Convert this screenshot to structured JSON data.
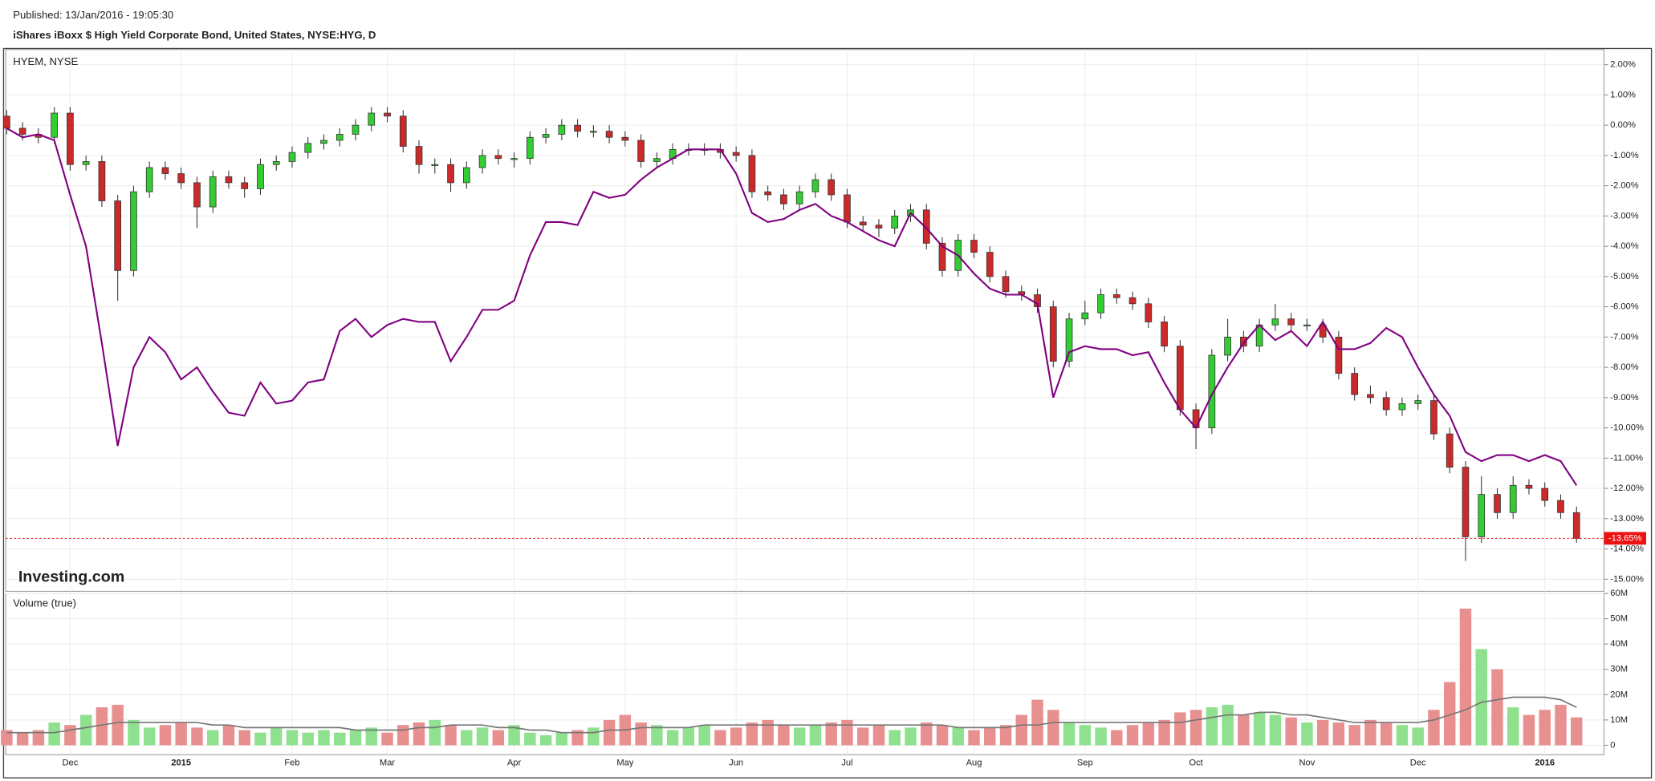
{
  "header": {
    "published": "Published: 13/Jan/2016 - 19:05:30",
    "title": "iShares iBoxx $ High Yield Corporate Bond, United States, NYSE:HYG, D"
  },
  "watermark": "Investing.com",
  "chart_data": [
    {
      "type": "candlestick",
      "title": "HYEM, NYSE",
      "up_color": "#33cc33",
      "down_color": "#cc2a2a",
      "grid": true,
      "categories": [
        null,
        null,
        null,
        null,
        "Dec",
        null,
        null,
        null,
        null,
        null,
        null,
        "2015",
        null,
        null,
        null,
        null,
        null,
        null,
        "Feb",
        null,
        null,
        null,
        null,
        null,
        "Mar",
        null,
        null,
        null,
        null,
        null,
        null,
        null,
        "Apr",
        null,
        null,
        null,
        null,
        null,
        null,
        "May",
        null,
        null,
        null,
        null,
        null,
        null,
        "Jun",
        null,
        null,
        null,
        null,
        null,
        null,
        "Jul",
        null,
        null,
        null,
        null,
        null,
        null,
        null,
        "Aug",
        null,
        null,
        null,
        null,
        null,
        null,
        "Sep",
        null,
        null,
        null,
        null,
        null,
        null,
        "Oct",
        null,
        null,
        null,
        null,
        null,
        null,
        "Nov",
        null,
        null,
        null,
        null,
        null,
        null,
        "Dec",
        null,
        null,
        null,
        null,
        null,
        null,
        null,
        "2016",
        null,
        null
      ],
      "open": [
        0.3,
        -0.1,
        -0.3,
        -0.4,
        0.4,
        -1.3,
        -1.2,
        -2.5,
        -4.8,
        -2.2,
        -1.4,
        -1.6,
        -1.9,
        -2.7,
        -1.7,
        -1.9,
        -2.1,
        -1.3,
        -1.2,
        -0.9,
        -0.6,
        -0.5,
        -0.3,
        0.0,
        0.4,
        0.3,
        -0.7,
        -1.3,
        -1.3,
        -1.9,
        -1.4,
        -1.0,
        -1.1,
        -1.1,
        -0.4,
        -0.3,
        0.0,
        -0.2,
        -0.2,
        -0.4,
        -0.5,
        -1.2,
        -1.1,
        -0.8,
        -0.8,
        -0.8,
        -0.9,
        -1.0,
        -2.2,
        -2.3,
        -2.6,
        -2.2,
        -1.8,
        -2.3,
        -3.2,
        -3.3,
        -3.4,
        -3.0,
        -2.8,
        -3.9,
        -4.8,
        -3.8,
        -4.2,
        -5.0,
        -5.5,
        -5.6,
        -6.0,
        -7.8,
        -6.4,
        -6.2,
        -5.6,
        -5.7,
        -5.9,
        -6.5,
        -7.3,
        -9.4,
        -10.0,
        -7.6,
        -7.0,
        -7.3,
        -6.6,
        -6.4,
        -6.6,
        -6.6,
        -7.0,
        -8.2,
        -8.9,
        -9.0,
        -9.4,
        -9.2,
        -9.1,
        -10.2,
        -11.3,
        -13.6,
        -12.2,
        -12.8,
        -11.9,
        -12.0,
        -12.4,
        -12.8
      ],
      "high": [
        0.5,
        0.1,
        -0.1,
        0.6,
        0.6,
        -1.0,
        -1.0,
        -2.3,
        -2.0,
        -1.2,
        -1.2,
        -1.4,
        -1.7,
        -1.5,
        -1.5,
        -1.7,
        -1.1,
        -1.0,
        -0.7,
        -0.4,
        -0.3,
        -0.1,
        0.2,
        0.6,
        0.6,
        0.5,
        -0.5,
        -1.1,
        -1.1,
        -1.2,
        -0.8,
        -0.8,
        -0.9,
        -0.2,
        -0.1,
        0.2,
        0.2,
        0.0,
        0.0,
        -0.2,
        -0.3,
        -0.9,
        -0.6,
        -0.6,
        -0.6,
        -0.6,
        -0.7,
        -0.8,
        -2.0,
        -2.1,
        -2.0,
        -1.6,
        -1.6,
        -2.1,
        -3.0,
        -3.1,
        -2.8,
        -2.6,
        -2.6,
        -3.7,
        -3.6,
        -3.6,
        -4.0,
        -4.8,
        -5.3,
        -5.4,
        -5.8,
        -6.2,
        -5.8,
        -5.4,
        -5.4,
        -5.5,
        -5.7,
        -6.3,
        -7.1,
        -9.2,
        -7.4,
        -6.4,
        -6.8,
        -6.4,
        -5.9,
        -6.2,
        -6.4,
        -6.4,
        -6.8,
        -8.0,
        -8.6,
        -8.8,
        -9.0,
        -8.9,
        -8.9,
        -10.0,
        -11.1,
        -11.6,
        -12.0,
        -11.6,
        -11.7,
        -11.8,
        -12.2,
        -12.6
      ],
      "low": [
        -0.3,
        -0.5,
        -0.6,
        -0.6,
        -1.5,
        -1.5,
        -2.7,
        -5.8,
        -5.0,
        -2.4,
        -1.8,
        -2.1,
        -3.4,
        -2.9,
        -2.1,
        -2.4,
        -2.3,
        -1.5,
        -1.4,
        -1.1,
        -0.8,
        -0.7,
        -0.5,
        -0.2,
        0.1,
        -0.9,
        -1.6,
        -1.6,
        -2.2,
        -2.1,
        -1.6,
        -1.3,
        -1.4,
        -1.3,
        -0.6,
        -0.5,
        -0.4,
        -0.4,
        -0.6,
        -0.7,
        -1.4,
        -1.4,
        -1.3,
        -1.0,
        -1.0,
        -1.1,
        -1.2,
        -2.4,
        -2.5,
        -2.8,
        -2.8,
        -2.4,
        -2.5,
        -3.4,
        -3.5,
        -3.7,
        -3.6,
        -3.2,
        -4.1,
        -5.0,
        -5.0,
        -4.4,
        -5.2,
        -5.7,
        -5.8,
        -6.2,
        -8.0,
        -8.0,
        -6.6,
        -6.4,
        -5.9,
        -6.1,
        -6.7,
        -7.5,
        -9.6,
        -10.7,
        -10.2,
        -7.8,
        -7.5,
        -7.5,
        -6.8,
        -6.8,
        -6.8,
        -7.2,
        -8.4,
        -9.1,
        -9.2,
        -9.6,
        -9.6,
        -9.4,
        -10.4,
        -11.5,
        -14.4,
        -13.8,
        -13.0,
        -13.0,
        -12.2,
        -12.6,
        -13.0,
        -13.8
      ],
      "close": [
        -0.1,
        -0.3,
        -0.4,
        0.4,
        -1.3,
        -1.2,
        -2.5,
        -4.8,
        -2.2,
        -1.4,
        -1.6,
        -1.9,
        -2.7,
        -1.7,
        -1.9,
        -2.1,
        -1.3,
        -1.2,
        -0.9,
        -0.6,
        -0.5,
        -0.3,
        0.0,
        0.4,
        0.3,
        -0.7,
        -1.3,
        -1.3,
        -1.9,
        -1.4,
        -1.0,
        -1.1,
        -1.1,
        -0.4,
        -0.3,
        0.0,
        -0.2,
        -0.2,
        -0.4,
        -0.5,
        -1.2,
        -1.1,
        -0.8,
        -0.8,
        -0.8,
        -0.9,
        -1.0,
        -2.2,
        -2.3,
        -2.6,
        -2.2,
        -1.8,
        -2.3,
        -3.2,
        -3.3,
        -3.4,
        -3.0,
        -2.8,
        -3.9,
        -4.8,
        -3.8,
        -4.2,
        -5.0,
        -5.5,
        -5.6,
        -6.0,
        -7.8,
        -6.4,
        -6.2,
        -5.6,
        -5.7,
        -5.9,
        -6.5,
        -7.3,
        -9.4,
        -10.0,
        -7.6,
        -7.0,
        -7.3,
        -6.6,
        -6.4,
        -6.6,
        -6.6,
        -7.0,
        -8.2,
        -8.9,
        -9.0,
        -9.4,
        -9.2,
        -9.1,
        -10.2,
        -11.3,
        -13.6,
        -12.2,
        -12.8,
        -11.9,
        -12.0,
        -12.4,
        -12.8,
        -13.65
      ],
      "overlay": {
        "color": "#800080",
        "values": [
          -0.1,
          -0.4,
          -0.3,
          -0.5,
          -2.3,
          -4.0,
          -7.2,
          -10.6,
          -8.0,
          -7.0,
          -7.5,
          -8.4,
          -8.0,
          -8.8,
          -9.5,
          -9.6,
          -8.5,
          -9.2,
          -9.1,
          -8.5,
          -8.4,
          -6.8,
          -6.4,
          -7.0,
          -6.6,
          -6.4,
          -6.5,
          -6.5,
          -7.8,
          -7.0,
          -6.1,
          -6.1,
          -5.8,
          -4.3,
          -3.2,
          -3.2,
          -3.3,
          -2.2,
          -2.4,
          -2.3,
          -1.8,
          -1.4,
          -1.1,
          -0.8,
          -0.8,
          -0.8,
          -1.6,
          -2.9,
          -3.2,
          -3.1,
          -2.8,
          -2.6,
          -3.0,
          -3.2,
          -3.5,
          -3.8,
          -4.0,
          -2.9,
          -3.4,
          -4.0,
          -4.3,
          -4.9,
          -5.4,
          -5.6,
          -5.6,
          -5.9,
          -9.0,
          -7.5,
          -7.3,
          -7.4,
          -7.4,
          -7.6,
          -7.5,
          -8.5,
          -9.4,
          -10.0,
          -8.9,
          -8.0,
          -7.2,
          -6.6,
          -7.1,
          -6.8,
          -7.3,
          -6.5,
          -7.4,
          -7.4,
          -7.2,
          -6.7,
          -7.0,
          -8.0,
          -8.9,
          -9.6,
          -10.8,
          -11.1,
          -10.9,
          -10.9,
          -11.1,
          -10.9,
          -11.1,
          -11.9
        ]
      },
      "last_value": {
        "value": -13.65,
        "label": "-13.65%",
        "color": "#ee1111"
      },
      "ylim": [
        -15.4,
        2.5
      ],
      "yticks": [
        {
          "value": 2,
          "label": "2.00%"
        },
        {
          "value": 1,
          "label": "1.00%"
        },
        {
          "value": 0,
          "label": "0.00%"
        },
        {
          "value": -1,
          "label": "-1.00%"
        },
        {
          "value": -2,
          "label": "-2.00%"
        },
        {
          "value": -3,
          "label": "-3.00%"
        },
        {
          "value": -4,
          "label": "-4.00%"
        },
        {
          "value": -5,
          "label": "-5.00%"
        },
        {
          "value": -6,
          "label": "-6.00%"
        },
        {
          "value": -7,
          "label": "-7.00%"
        },
        {
          "value": -8,
          "label": "-8.00%"
        },
        {
          "value": -9,
          "label": "-9.00%"
        },
        {
          "value": -10,
          "label": "-10.00%"
        },
        {
          "value": -11,
          "label": "-11.00%"
        },
        {
          "value": -12,
          "label": "-12.00%"
        },
        {
          "value": -13,
          "label": "-13.00%"
        },
        {
          "value": -14,
          "label": "-14.00%"
        },
        {
          "value": -15,
          "label": "-15.00%"
        }
      ]
    },
    {
      "type": "bar",
      "title": "Volume (true)",
      "up_color": "#8fe08f",
      "down_color": "#e89090",
      "grid": true,
      "values": [
        6,
        5,
        6,
        9,
        8,
        12,
        15,
        16,
        10,
        7,
        8,
        9,
        7,
        6,
        8,
        6,
        5,
        7,
        6,
        5,
        6,
        5,
        6,
        7,
        5,
        8,
        9,
        10,
        8,
        6,
        7,
        6,
        8,
        5,
        4,
        5,
        6,
        7,
        10,
        12,
        9,
        8,
        6,
        7,
        8,
        6,
        7,
        9,
        10,
        8,
        7,
        8,
        9,
        10,
        7,
        8,
        6,
        7,
        9,
        8,
        7,
        6,
        7,
        8,
        12,
        18,
        14,
        9,
        8,
        7,
        6,
        8,
        9,
        10,
        13,
        14,
        15,
        16,
        12,
        13,
        12,
        11,
        9,
        10,
        9,
        8,
        10,
        9,
        8,
        7,
        14,
        25,
        54,
        38,
        30,
        15,
        12,
        14,
        16,
        11
      ],
      "moving_average": {
        "color": "#777777",
        "values": [
          5,
          5,
          5,
          5,
          6,
          7,
          8,
          9,
          9,
          9,
          9,
          9,
          9,
          8,
          8,
          7,
          7,
          7,
          7,
          7,
          7,
          7,
          6,
          6,
          6,
          6,
          7,
          7,
          8,
          8,
          8,
          7,
          7,
          6,
          6,
          5,
          5,
          5,
          6,
          6,
          7,
          7,
          7,
          7,
          8,
          8,
          8,
          8,
          8,
          8,
          8,
          8,
          8,
          8,
          8,
          8,
          8,
          8,
          8,
          8,
          7,
          7,
          7,
          7,
          8,
          8,
          9,
          9,
          9,
          9,
          9,
          9,
          9,
          9,
          9,
          10,
          11,
          12,
          12,
          13,
          13,
          12,
          12,
          11,
          10,
          9,
          9,
          9,
          9,
          9,
          10,
          12,
          14,
          17,
          18,
          19,
          19,
          19,
          18,
          15
        ]
      },
      "ylim": [
        -3.7,
        60
      ],
      "yticks": [
        {
          "value": 60,
          "label": "60M"
        },
        {
          "value": 50,
          "label": "50M"
        },
        {
          "value": 40,
          "label": "40M"
        },
        {
          "value": 30,
          "label": "30M"
        },
        {
          "value": 20,
          "label": "20M"
        },
        {
          "value": 10,
          "label": "10M"
        },
        0
      ]
    }
  ]
}
